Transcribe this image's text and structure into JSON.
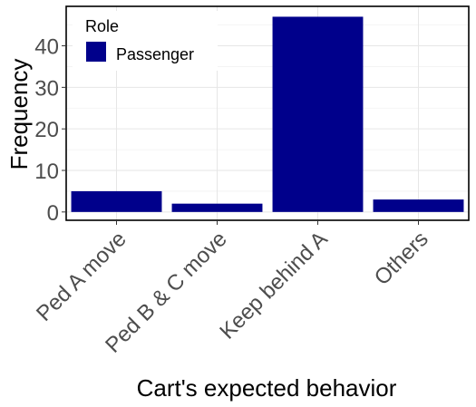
{
  "chart_data": {
    "type": "bar",
    "categories": [
      "Ped A move",
      "Ped B & C move",
      "Keep behind A",
      "Others"
    ],
    "series": [
      {
        "name": "Passenger",
        "values": [
          5,
          2,
          47,
          3
        ],
        "color": "#00008B"
      }
    ],
    "xlabel": "Cart's expected behavior",
    "ylabel": "Frequency",
    "ylim": [
      -2.0,
      49.5
    ],
    "yticks": [
      0,
      10,
      20,
      30,
      40
    ],
    "legend": {
      "title": "Role",
      "placement": "top-left"
    },
    "grid": true
  }
}
